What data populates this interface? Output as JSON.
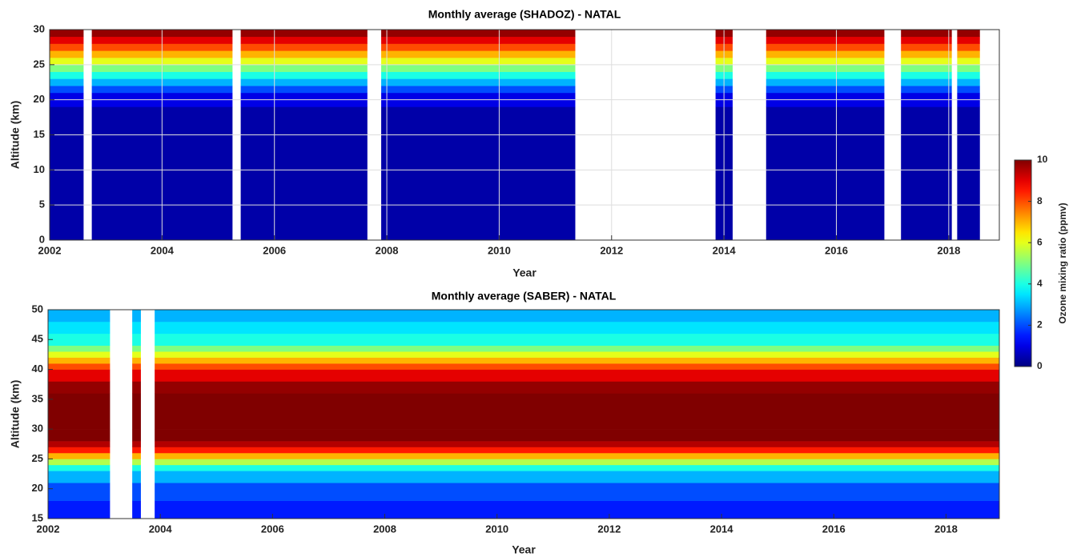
{
  "chart_data": [
    {
      "type": "heatmap",
      "title": "Monthly average (SHADOZ) - NATAL",
      "xlabel": "Year",
      "ylabel": "Altitude (km)",
      "xlim": [
        2002,
        2018.9
      ],
      "ylim": [
        0,
        30
      ],
      "grid": true,
      "colormap": "jet",
      "clim": [
        0,
        10
      ],
      "xticks": [
        2002,
        2004,
        2006,
        2008,
        2010,
        2012,
        2014,
        2016,
        2018
      ],
      "yticks": [
        0,
        5,
        10,
        15,
        20,
        25,
        30
      ],
      "x_edges": [
        2002,
        2002.6,
        2002.75,
        2005.25,
        2005.4,
        2007.65,
        2007.9,
        2011.35,
        2013.85,
        2014.15,
        2014.75,
        2016.85,
        2017.15,
        2018.05,
        2018.15,
        2018.55,
        2018.9
      ],
      "y_edges": [
        0,
        19,
        21,
        22,
        23,
        24,
        25,
        26,
        27,
        28,
        29,
        30
      ],
      "z": [
        [
          0.4,
          1,
          2,
          3,
          4,
          5,
          6,
          7,
          8,
          9,
          9.8
        ],
        null,
        [
          0.4,
          1,
          2,
          3,
          4,
          5,
          6,
          7,
          8,
          9,
          9.8
        ],
        null,
        [
          0.4,
          1,
          2,
          3,
          4,
          5,
          6,
          7,
          8,
          9,
          9.8
        ],
        null,
        [
          0.4,
          1,
          2,
          3,
          4,
          5,
          6,
          7,
          8,
          9,
          9.8
        ],
        null,
        [
          0.4,
          1,
          2,
          3,
          4,
          5,
          6,
          7,
          8,
          9,
          9.8
        ],
        null,
        [
          0.4,
          1,
          2,
          3,
          4,
          5,
          6,
          7,
          8,
          9,
          9.8
        ],
        null,
        [
          0.4,
          1,
          2,
          3,
          4,
          5,
          6,
          7,
          8,
          9,
          9.8
        ],
        null,
        [
          0.4,
          1,
          2,
          3,
          4,
          5,
          6,
          7,
          8,
          9,
          9.8
        ],
        null
      ]
    },
    {
      "type": "heatmap",
      "title": "Monthly average (SABER) - NATAL",
      "xlabel": "Year",
      "ylabel": "Altitude (km)",
      "xlim": [
        2002,
        2018.95
      ],
      "ylim": [
        15,
        50
      ],
      "grid": false,
      "colormap": "jet",
      "clim": [
        0,
        10
      ],
      "xticks": [
        2002,
        2004,
        2006,
        2008,
        2010,
        2012,
        2014,
        2016,
        2018
      ],
      "yticks": [
        15,
        20,
        25,
        30,
        35,
        40,
        45,
        50
      ],
      "x_edges": [
        2002,
        2003.1,
        2003.5,
        2003.65,
        2003.9,
        2018.95
      ],
      "y_edges": [
        15,
        18,
        21,
        23,
        24,
        25,
        26,
        27,
        28,
        30,
        36,
        38,
        40,
        41,
        42,
        43,
        44,
        46,
        48,
        50
      ],
      "z": [
        [
          1.5,
          2,
          3,
          4,
          5.5,
          7,
          8.5,
          9.5,
          10,
          10,
          9.8,
          9,
          8,
          7,
          6,
          5,
          4,
          3.5,
          3
        ],
        null,
        [
          1.5,
          2,
          3,
          4,
          5.5,
          7,
          8.5,
          9.5,
          10,
          10,
          9.8,
          9,
          8,
          7,
          6,
          5,
          4,
          3.5,
          3
        ],
        null,
        [
          1.5,
          2,
          3,
          4,
          5.5,
          7,
          8.5,
          9.5,
          10,
          10,
          9.8,
          9,
          8,
          7,
          6,
          5,
          4,
          3.5,
          3
        ]
      ]
    }
  ],
  "colorbar": {
    "label": "Ozone mixing ratio (ppmv)",
    "clim": [
      0,
      10
    ],
    "ticks": [
      0,
      2,
      4,
      6,
      8,
      10
    ],
    "colormap": "jet"
  }
}
